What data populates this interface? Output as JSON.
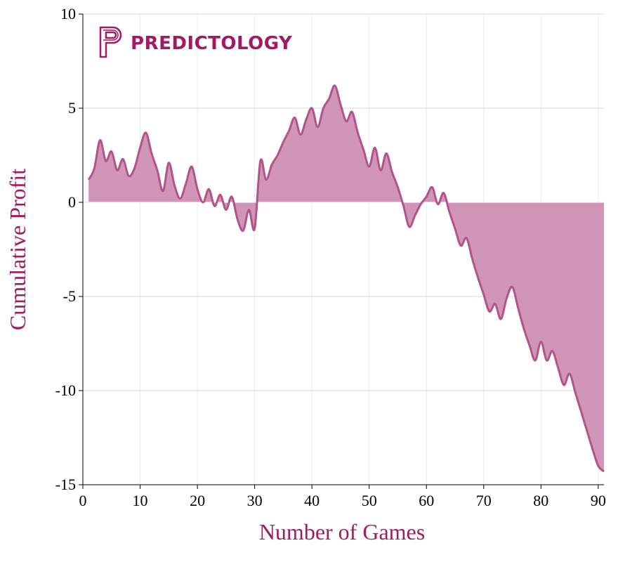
{
  "chart_data": {
    "type": "area",
    "xlabel": "Number of Games",
    "ylabel": "Cumulative Profit",
    "xlim": [
      0,
      91
    ],
    "ylim": [
      -15,
      10
    ],
    "x_ticks": [
      0,
      10,
      20,
      30,
      40,
      50,
      60,
      70,
      80,
      90
    ],
    "y_ticks": [
      10,
      5,
      0,
      -5,
      -10,
      -15
    ],
    "grid": true,
    "legend": "none",
    "series": [
      {
        "x": [
          1,
          2,
          3,
          4,
          5,
          6,
          7,
          8,
          9,
          10,
          11,
          12,
          13,
          14,
          15,
          16,
          17,
          18,
          19,
          20,
          21,
          22,
          23,
          24,
          25,
          26,
          27,
          28,
          29,
          30,
          31,
          32,
          33,
          34,
          35,
          36,
          37,
          38,
          39,
          40,
          41,
          42,
          43,
          44,
          45,
          46,
          47,
          48,
          49,
          50,
          51,
          52,
          53,
          54,
          55,
          56,
          57,
          58,
          59,
          60,
          61,
          62,
          63,
          64,
          65,
          66,
          67,
          68,
          69,
          70,
          71,
          72,
          73,
          74,
          75,
          76,
          77,
          78,
          79,
          80,
          81,
          82,
          83,
          84,
          85,
          86,
          87,
          88,
          89,
          90,
          91
        ],
        "values": [
          1.2,
          1.8,
          3.3,
          2.2,
          2.7,
          1.7,
          2.3,
          1.4,
          1.8,
          2.9,
          3.7,
          2.6,
          1.7,
          0.6,
          2.1,
          0.9,
          0.2,
          1.0,
          1.9,
          0.7,
          0.0,
          0.7,
          -0.2,
          0.4,
          -0.4,
          0.3,
          -0.9,
          -1.5,
          -0.4,
          -1.4,
          2.2,
          1.2,
          2.0,
          2.5,
          3.2,
          3.8,
          4.5,
          3.6,
          4.4,
          5.0,
          4.0,
          5.0,
          5.5,
          6.2,
          5.2,
          4.3,
          4.8,
          3.7,
          2.8,
          1.9,
          2.9,
          1.7,
          2.6,
          1.6,
          0.8,
          -0.2,
          -1.3,
          -0.7,
          -0.1,
          0.3,
          0.8,
          -0.1,
          0.5,
          -0.5,
          -1.4,
          -2.3,
          -1.9,
          -3.0,
          -4.0,
          -4.9,
          -5.8,
          -5.4,
          -6.2,
          -5.1,
          -4.5,
          -5.6,
          -6.7,
          -7.6,
          -8.4,
          -7.4,
          -8.4,
          -7.9,
          -8.8,
          -9.7,
          -9.1,
          -10.1,
          -11.1,
          -12.1,
          -13.1,
          -14.0,
          -14.3
        ]
      }
    ],
    "line_color": "#b25489",
    "fill_color": "#d195b8",
    "label_color": "#a31964",
    "logo_text": "PREDICTOLOGY",
    "logo_color": "#a31964"
  }
}
